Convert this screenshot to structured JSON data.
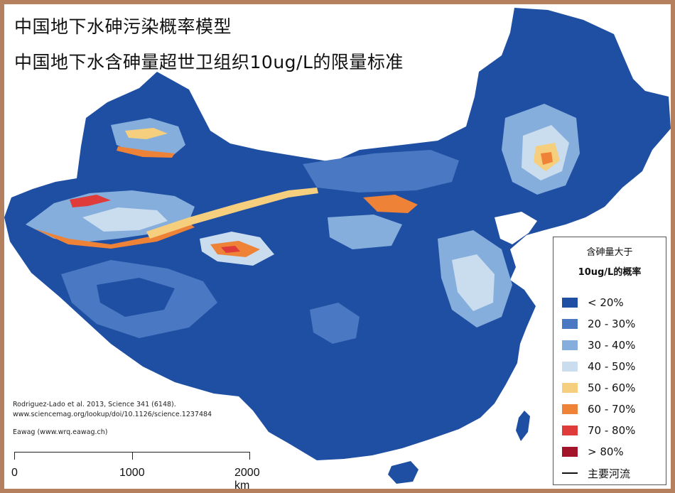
{
  "titles": {
    "line1": "中国地下水砷污染概率模型",
    "line2": "中国地下水含砷量超世卫组织10ug/L的限量标准"
  },
  "credits": {
    "line1": "Rodriguez-Lado et al. 2013, Science 341 (6148).",
    "line2": "www.sciencemag.org/lookup/doi/10.1126/science.1237484",
    "line3": "Eawag (www.wrq.eawag.ch)"
  },
  "scale": {
    "labels": [
      "0",
      "1000",
      "2000  km"
    ]
  },
  "legend": {
    "title_line1": "含砷量大于",
    "title_line2": "10ug/L的概率",
    "items": [
      {
        "label": "< 20%",
        "color": "#1f4fa3"
      },
      {
        "label": "20 - 30%",
        "color": "#4a78c2"
      },
      {
        "label": "30 - 40%",
        "color": "#86aedc"
      },
      {
        "label": "40 - 50%",
        "color": "#c9ddef"
      },
      {
        "label": "50 - 60%",
        "color": "#f5cf7d"
      },
      {
        "label": "60 - 70%",
        "color": "#ee8236"
      },
      {
        "label": "70 - 80%",
        "color": "#df3b3b"
      },
      {
        "label": "> 80%",
        "color": "#a3132a"
      }
    ],
    "river_label": "主要河流"
  },
  "colors": {
    "frame": "#b5805d",
    "base_map": "#1f4fa3",
    "sea": "#ffffff"
  }
}
